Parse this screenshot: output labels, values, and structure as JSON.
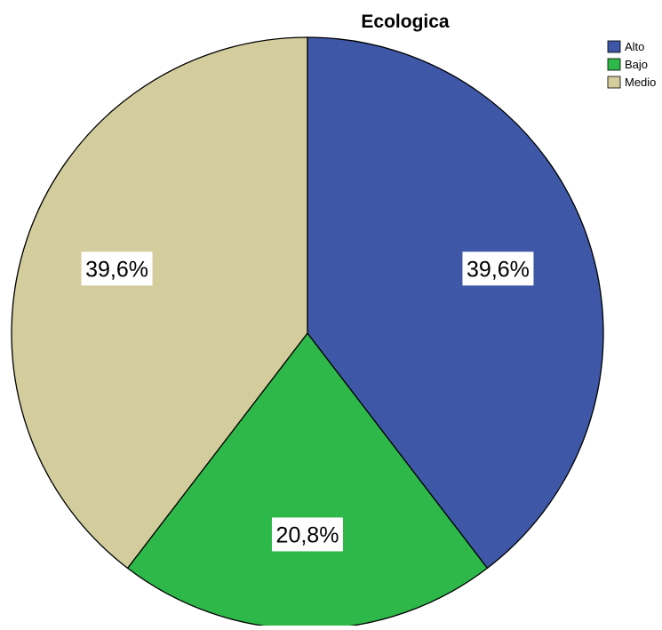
{
  "chart_data": {
    "type": "pie",
    "title": "Ecologica",
    "slices": [
      {
        "label": "Alto",
        "value": 39.6,
        "value_label": "39,6%",
        "color": "#3e58a7"
      },
      {
        "label": "Bajo",
        "value": 20.8,
        "value_label": "20,8%",
        "color": "#2eb84a"
      },
      {
        "label": "Medio",
        "value": 39.6,
        "value_label": "39,6%",
        "color": "#d3cd9d"
      }
    ],
    "legend_placement": "top-right",
    "start_angle_deg": 0,
    "direction": "clockwise"
  }
}
